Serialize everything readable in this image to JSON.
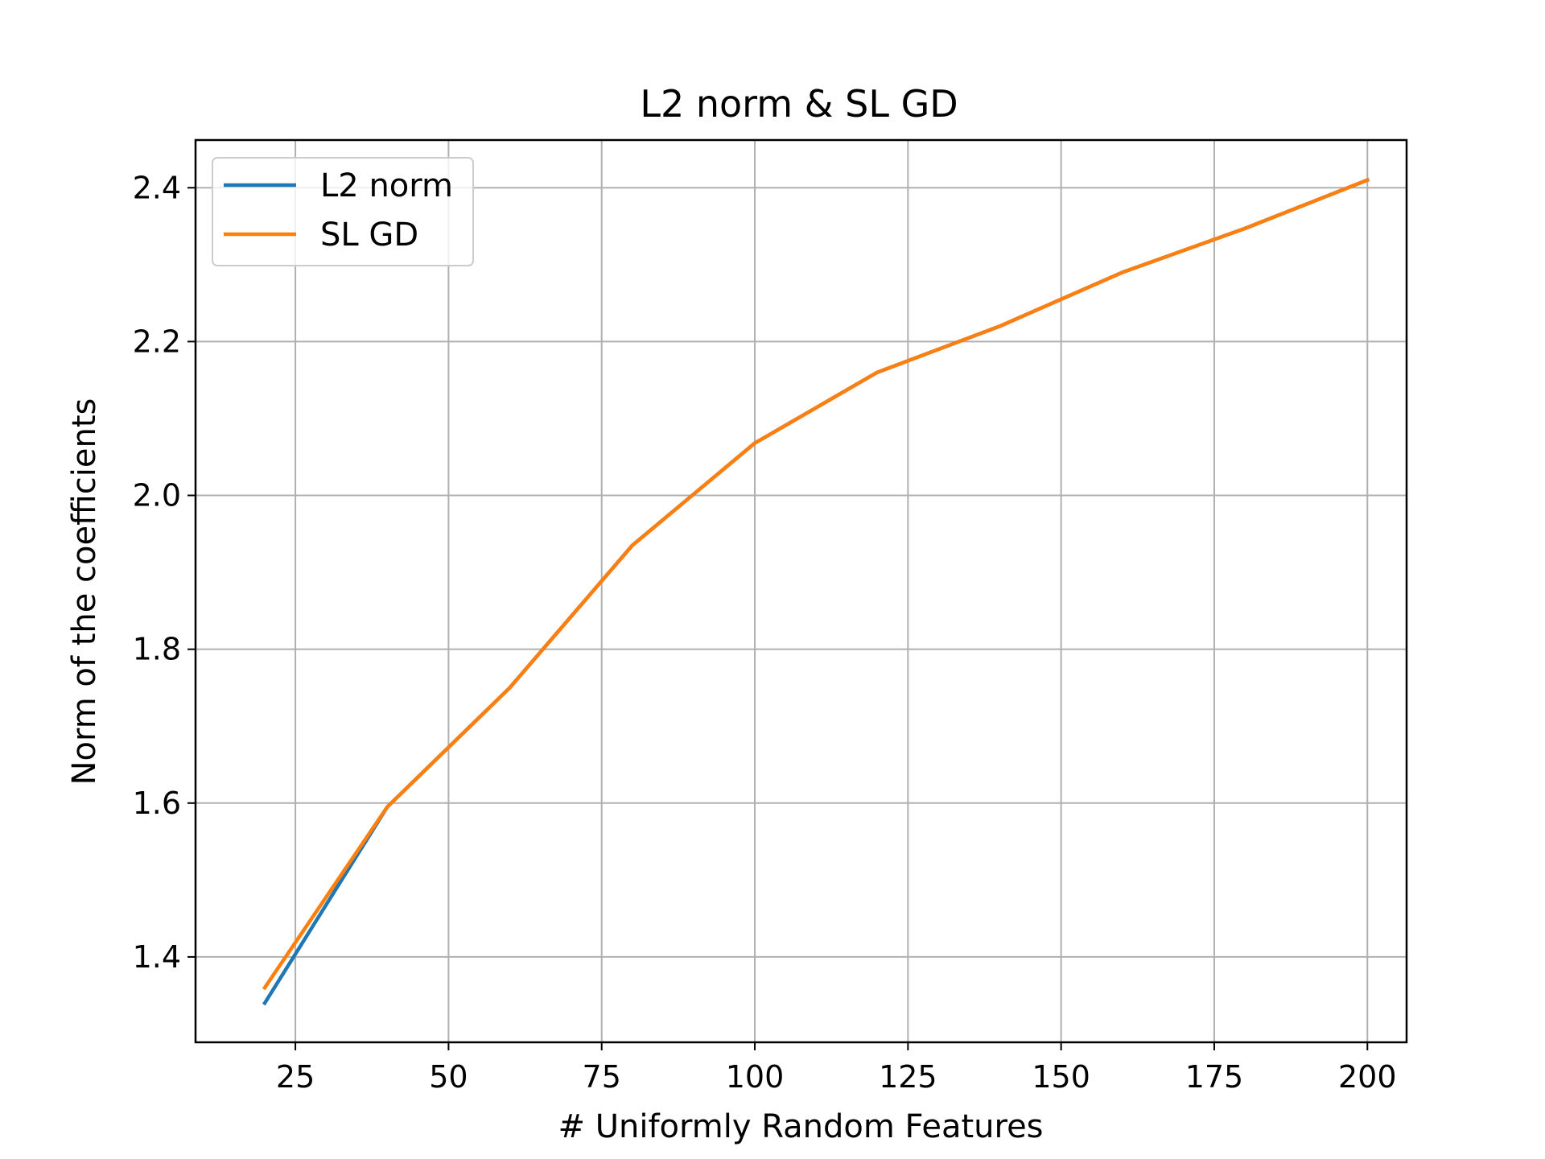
{
  "chart_data": {
    "type": "line",
    "title": "L2 norm & SL GD",
    "xlabel": "# Uniformly Random Features",
    "ylabel": "Norm of the coefficients",
    "xlim": [
      8.7,
      206.4
    ],
    "ylim": [
      1.289,
      2.462
    ],
    "xticks": [
      25,
      50,
      75,
      100,
      125,
      150,
      175,
      200
    ],
    "xtick_labels": [
      "25",
      "50",
      "75",
      "100",
      "125",
      "150",
      "175",
      "200"
    ],
    "yticks": [
      1.4,
      1.6,
      1.8,
      2.0,
      2.2,
      2.4
    ],
    "ytick_labels": [
      "1.4",
      "1.6",
      "1.8",
      "2.0",
      "2.2",
      "2.4"
    ],
    "grid": true,
    "legend_position": "upper left",
    "series": [
      {
        "name": "L2 norm",
        "color": "#1f77b4",
        "x": [
          20,
          40,
          60,
          80,
          100,
          120,
          140,
          160,
          180,
          200
        ],
        "y": [
          1.34,
          1.595,
          1.75,
          1.935,
          2.068,
          2.16,
          2.22,
          2.29,
          2.347,
          2.41
        ]
      },
      {
        "name": "SL GD",
        "color": "#ff7f0e",
        "x": [
          20,
          40,
          60,
          80,
          100,
          120,
          140,
          160,
          180,
          200
        ],
        "y": [
          1.36,
          1.595,
          1.75,
          1.935,
          2.068,
          2.16,
          2.22,
          2.29,
          2.347,
          2.41
        ]
      }
    ]
  }
}
